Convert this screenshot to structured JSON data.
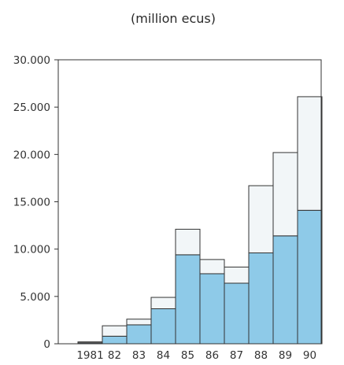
{
  "chart_data": {
    "type": "bar",
    "stacked": true,
    "title": "",
    "subtitle": "(million ecus)",
    "xlabel": "",
    "ylabel": "",
    "categories": [
      "1981",
      "82",
      "83",
      "84",
      "85",
      "86",
      "87",
      "88",
      "89",
      "90"
    ],
    "series": [
      {
        "color": "#8ecae8",
        "values": [
          100,
          800,
          2000,
          3700,
          9400,
          7400,
          6400,
          9600,
          11400,
          14100
        ]
      },
      {
        "color": "#f2f6f8",
        "values": [
          100,
          1100,
          600,
          1200,
          2700,
          1500,
          1700,
          7100,
          8800,
          12000
        ]
      }
    ],
    "ylim": [
      0,
      30000
    ],
    "yticks": [
      {
        "value": 0,
        "label": "0"
      },
      {
        "value": 5000,
        "label": "5.000"
      },
      {
        "value": 10000,
        "label": "10.000"
      },
      {
        "value": 15000,
        "label": "15.000"
      },
      {
        "value": 20000,
        "label": "20.000"
      },
      {
        "value": 25000,
        "label": "25.000"
      },
      {
        "value": 30000,
        "label": "30.000"
      }
    ],
    "grid": false,
    "legend": "none"
  }
}
